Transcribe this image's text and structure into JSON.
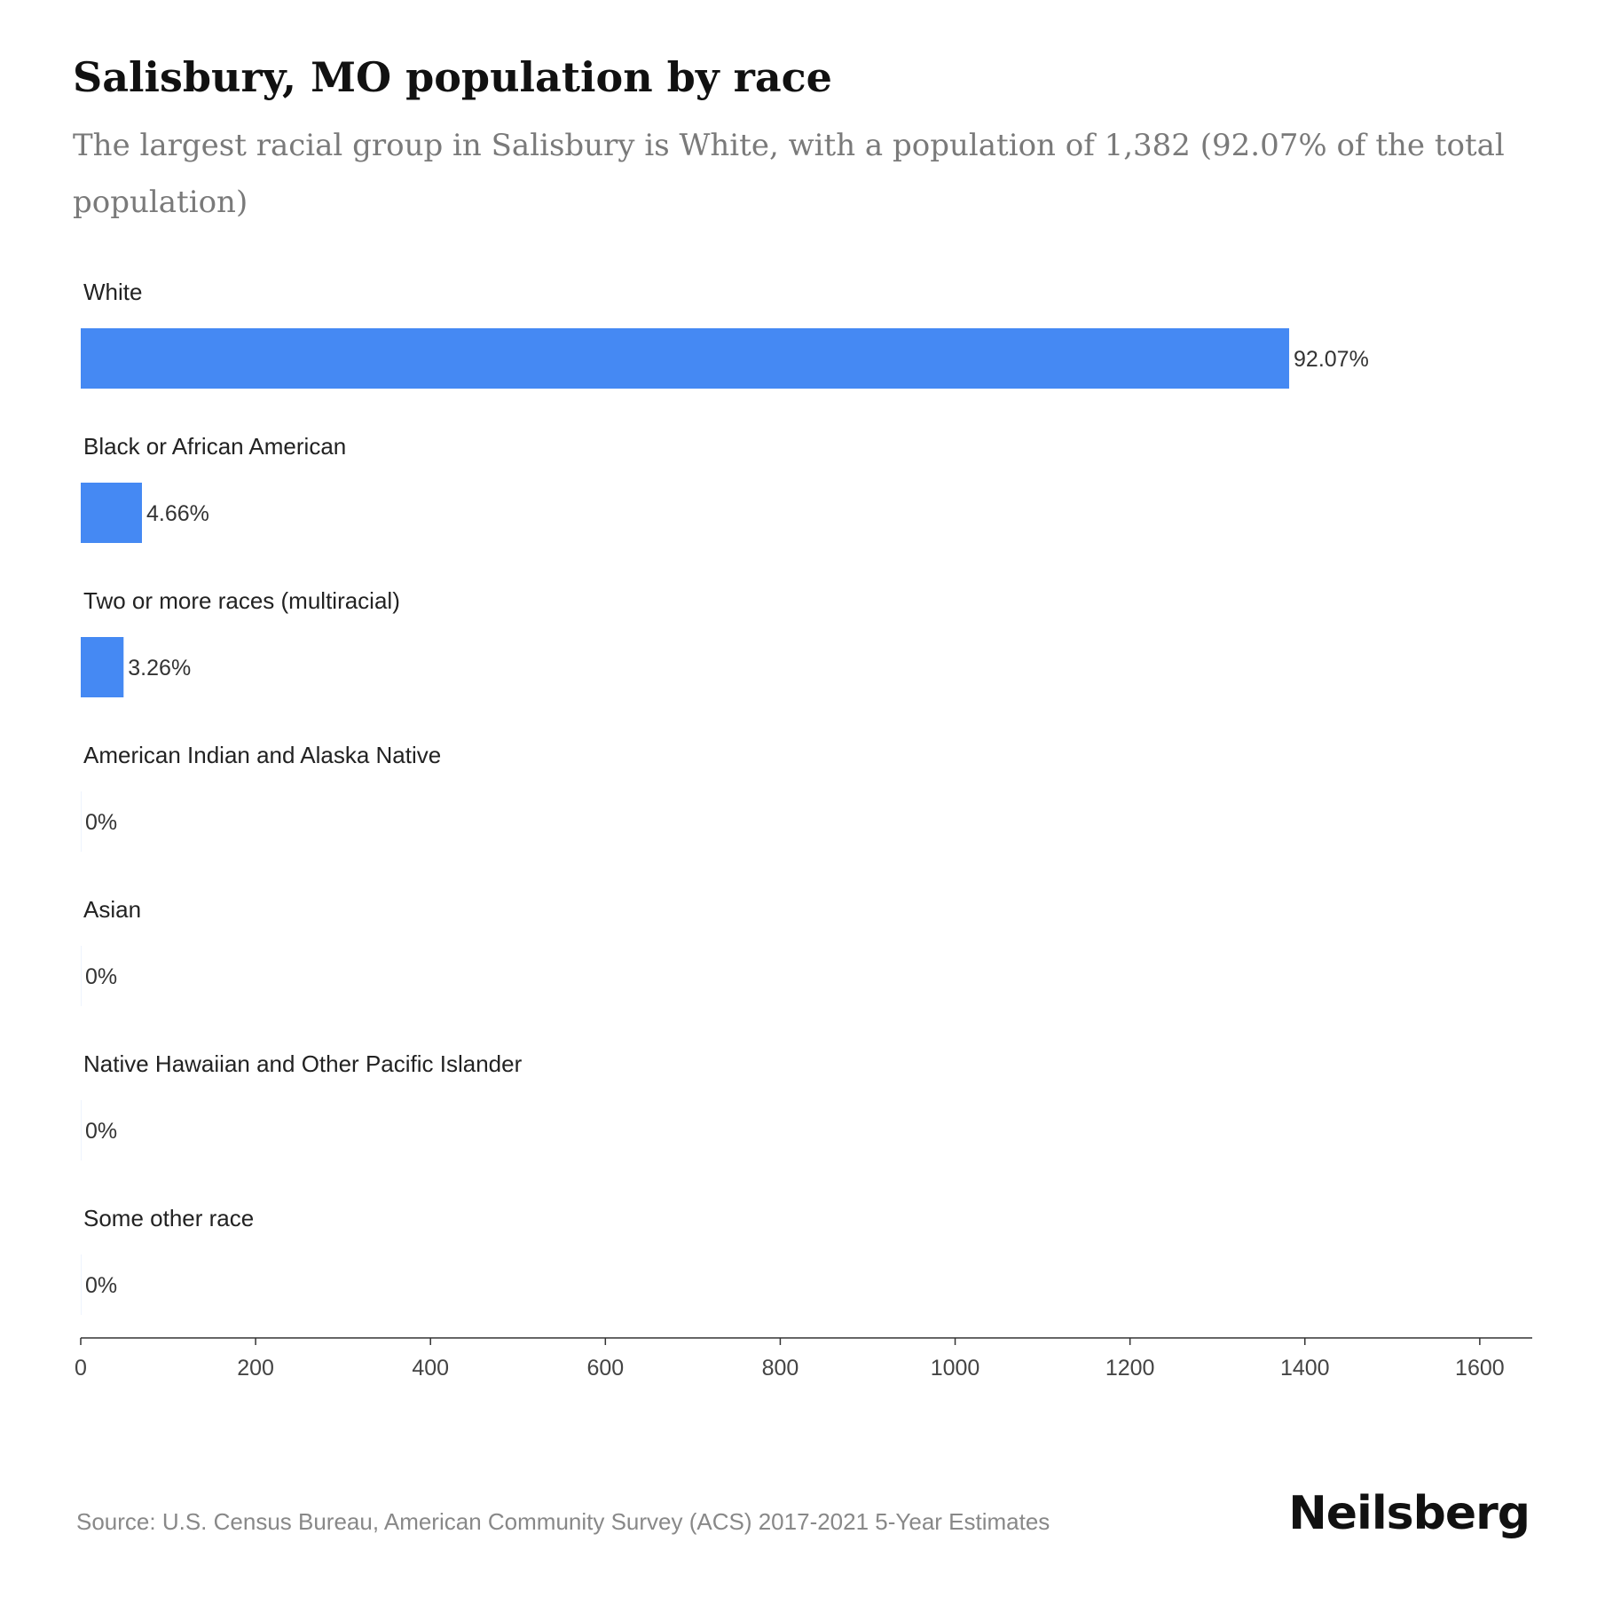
{
  "header": {
    "title": "Salisbury, MO population by race",
    "subtitle": "The largest racial group in Salisbury is White, with a population of 1,382 (92.07% of the total population)"
  },
  "chart_data": {
    "type": "bar",
    "orientation": "horizontal",
    "categories": [
      "White",
      "Black or African American",
      "Two or more races (multiracial)",
      "American Indian and Alaska Native",
      "Asian",
      "Native Hawaiian and Other Pacific Islander",
      "Some other race"
    ],
    "values": [
      1382,
      70,
      49,
      0,
      0,
      0,
      0
    ],
    "value_labels": [
      "92.07%",
      "4.66%",
      "3.26%",
      "0%",
      "0%",
      "0%",
      "0%"
    ],
    "xlim": [
      0,
      1660
    ],
    "xticks": [
      0,
      200,
      400,
      600,
      800,
      1000,
      1200,
      1400,
      1600
    ],
    "grid": false,
    "bar_color": "#4589f3"
  },
  "footer": {
    "source": "Source: U.S. Census Bureau, American Community Survey (ACS) 2017-2021 5-Year Estimates",
    "brand": "Neilsberg"
  }
}
